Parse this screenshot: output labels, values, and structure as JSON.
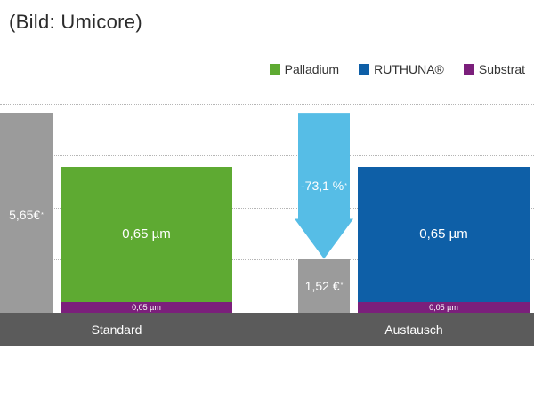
{
  "caption": "(Bild: Umicore)",
  "colors": {
    "palladium": "#5eaa32",
    "ruthuna": "#0e5fa7",
    "substrat": "#7b1f7b",
    "cost": "#9b9b9b",
    "arrow": "#56bde6",
    "axis_band": "#5b5b5b"
  },
  "chart_data": {
    "type": "bar",
    "categories": [
      "Standard",
      "Austausch"
    ],
    "legend": [
      "Palladium",
      "RUTHUNA®",
      "Substrat"
    ],
    "legend_position": "top-right",
    "grid": true,
    "series": [
      {
        "name": "Palladium",
        "unit": "µm",
        "values": [
          0.65,
          null
        ]
      },
      {
        "name": "RUTHUNA®",
        "unit": "µm",
        "values": [
          null,
          0.65
        ]
      },
      {
        "name": "Substrat",
        "unit": "µm",
        "values": [
          0.05,
          0.05
        ]
      }
    ],
    "costs": {
      "unit": "€",
      "values": [
        5.65,
        1.52
      ],
      "labels": [
        "5,65€",
        "1,52 €"
      ],
      "footnote_marker": "*"
    },
    "change_label": "-73,1 %",
    "data_labels": {
      "standard_top": "0,65 µm",
      "standard_substrate": "0,05 µm",
      "austausch_top": "0,65 µm",
      "austausch_substrate": "0,05 µm"
    }
  }
}
